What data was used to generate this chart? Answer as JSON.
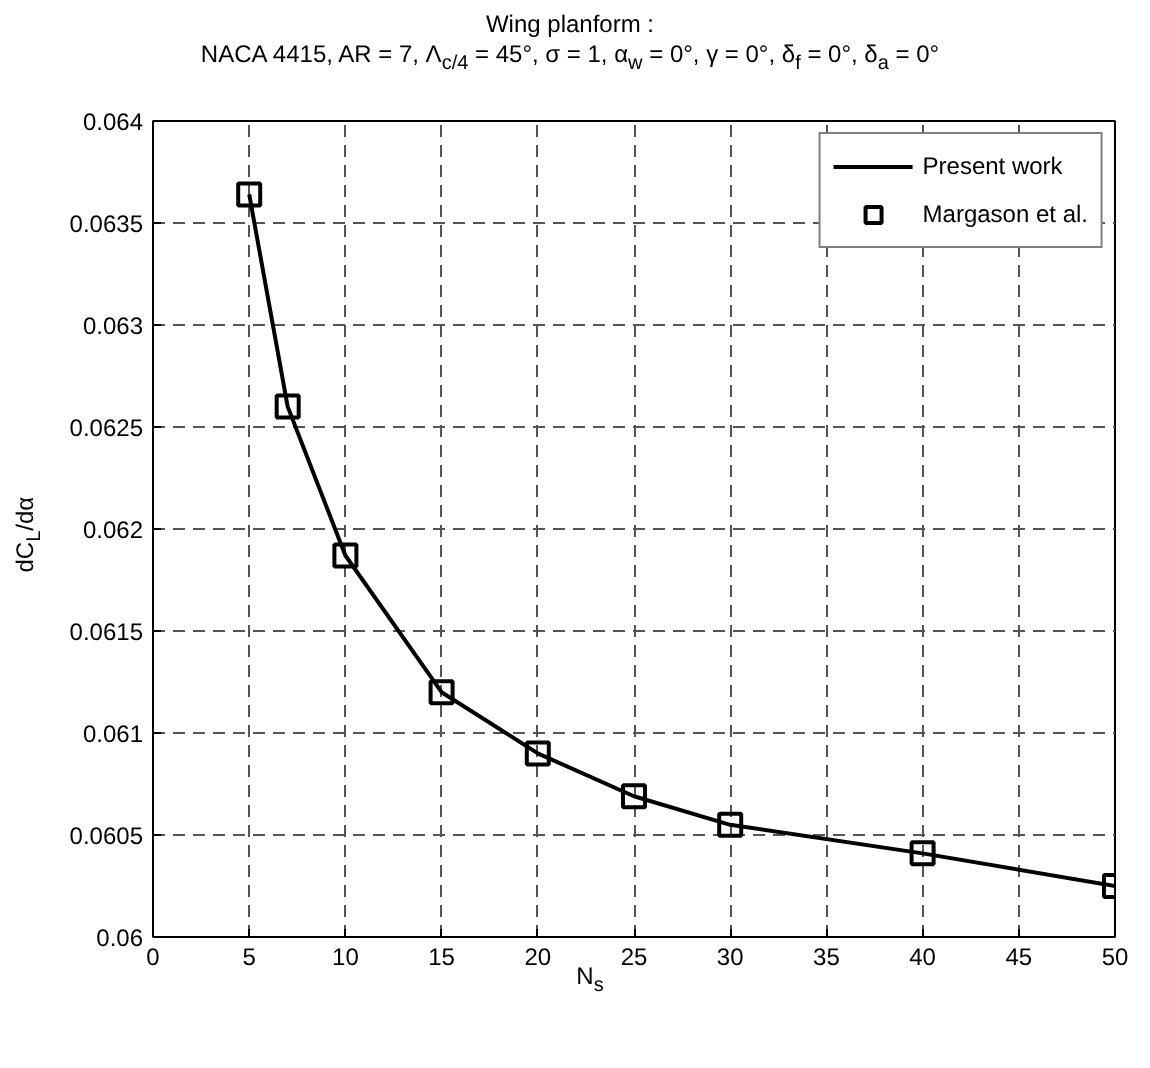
{
  "chart_data": {
    "type": "line",
    "title": "Wing planform :",
    "subtitle": "NACA 4415, AR = 7, Λ$_{c/4}$ = 45°, σ = 1, α$_{w}$ = 0°, γ = 0°, δ$_{f}$ = 0°, δ$_{a}$ = 0°",
    "xlabel": "N$_{s}$",
    "ylabel": "dC$_{L}$/dα",
    "series": [
      {
        "name": "Present work",
        "color": "#000000",
        "marker": "none",
        "line_style": "solid",
        "x": [
          5,
          7,
          10,
          15,
          20,
          25,
          30,
          40,
          50
        ],
        "values": [
          0.06364,
          0.0626,
          0.06187,
          0.0612,
          0.0609,
          0.06069,
          0.06055,
          0.06041,
          0.06025
        ]
      },
      {
        "name": "Margason et al.",
        "type": "scatter",
        "color": "#000000",
        "marker": "square",
        "x": [
          5,
          7,
          10,
          15,
          20,
          25,
          30,
          40,
          50
        ],
        "values": [
          0.06364,
          0.0626,
          0.06187,
          0.0612,
          0.0609,
          0.06069,
          0.06055,
          0.06041,
          0.06025
        ]
      }
    ],
    "xlim": [
      0,
      50
    ],
    "xticks": [
      0,
      5,
      10,
      15,
      20,
      25,
      30,
      35,
      40,
      45,
      50
    ],
    "ylim": [
      0.06,
      0.064
    ],
    "yticks": [
      {
        "value": 0.06,
        "label": "0.06"
      },
      0.0605,
      0.061,
      0.0615,
      0.062,
      0.0625,
      0.063,
      0.0635,
      0.064
    ],
    "grid": true,
    "legend": "top right"
  }
}
